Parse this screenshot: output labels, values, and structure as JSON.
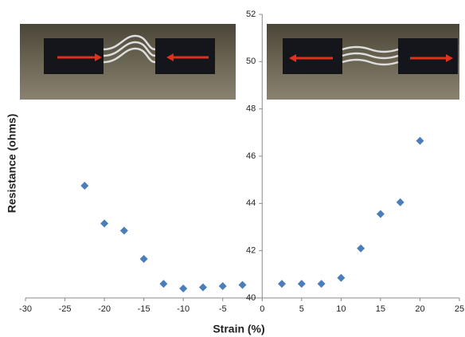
{
  "chart_data": {
    "type": "scatter",
    "x_label": "Strain (%)",
    "y_label": "Resistance (ohms)",
    "x": [
      -22.5,
      -20,
      -17.5,
      -15,
      -12.5,
      -10,
      -7.5,
      -5,
      -2.5,
      2.5,
      5,
      7.5,
      10,
      12.5,
      15,
      17.5,
      20
    ],
    "values": [
      44.75,
      43.15,
      42.85,
      41.65,
      40.6,
      40.4,
      40.45,
      40.5,
      40.55,
      40.6,
      40.6,
      40.6,
      40.85,
      42.1,
      43.55,
      44.05,
      46.65
    ],
    "color": "#4a7ebb",
    "xlim": [
      -30,
      25
    ],
    "xticks": [
      -30,
      -25,
      -20,
      -15,
      -10,
      -5,
      0,
      5,
      10,
      15,
      20,
      25
    ],
    "ylim": [
      40,
      52
    ],
    "yticks": [
      40,
      42,
      44,
      46,
      48,
      50,
      52
    ]
  }
}
